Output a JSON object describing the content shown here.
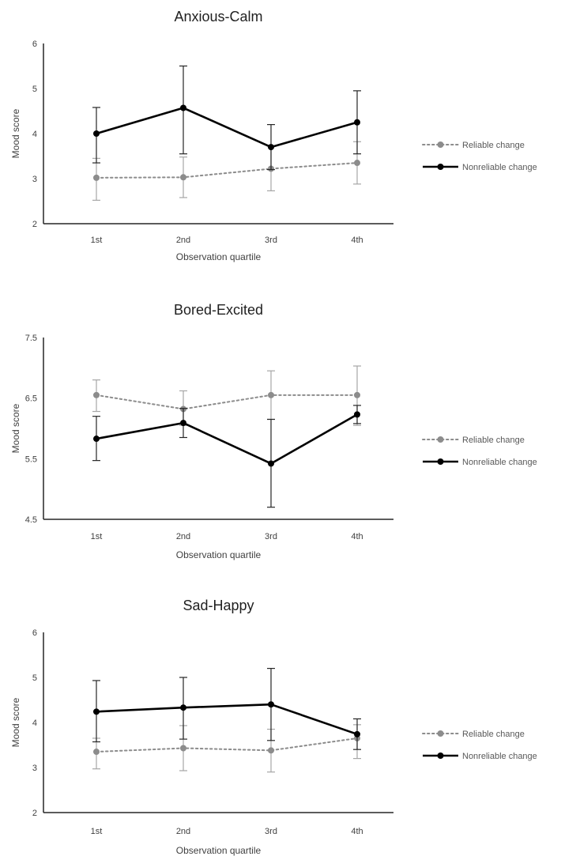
{
  "colors": {
    "reliable": "#8c8c8c",
    "nonreliable": "#000000",
    "axis": "#262626"
  },
  "chart_data": [
    {
      "type": "line",
      "title": "Anxious-Calm",
      "xlabel": "Observation quartile",
      "ylabel": "Mood score",
      "categories": [
        "1st",
        "2nd",
        "3rd",
        "4th"
      ],
      "ylim": [
        2,
        6
      ],
      "yticks": [
        "2",
        "3",
        "4",
        "5",
        "6"
      ],
      "tick_values": [
        2,
        3,
        4,
        5,
        6
      ],
      "grid": false,
      "legend": "right",
      "series": [
        {
          "name": "Reliable change",
          "style": "dotted",
          "color": "#8c8c8c",
          "values": [
            3.02,
            3.03,
            3.22,
            3.35
          ],
          "err_low": [
            2.52,
            2.58,
            2.73,
            2.88
          ],
          "err_high": [
            3.45,
            3.48,
            3.72,
            3.82
          ]
        },
        {
          "name": "Nonreliable change",
          "style": "solid",
          "color": "#000000",
          "values": [
            4.0,
            4.57,
            3.7,
            4.25
          ],
          "err_low": [
            3.35,
            3.55,
            3.2,
            3.55
          ],
          "err_high": [
            4.58,
            5.5,
            4.2,
            4.95
          ]
        }
      ]
    },
    {
      "type": "line",
      "title": "Bored-Excited",
      "xlabel": "Observation quartile",
      "ylabel": "Mood score",
      "categories": [
        "1st",
        "2nd",
        "3rd",
        "4th"
      ],
      "ylim": [
        4.5,
        7.5
      ],
      "yticks": [
        "4.5",
        "5.5",
        "6.5",
        "7.5"
      ],
      "tick_values": [
        4.5,
        5.5,
        6.5,
        7.5
      ],
      "grid": false,
      "legend": "right",
      "series": [
        {
          "name": "Reliable change",
          "style": "dotted",
          "color": "#8c8c8c",
          "values": [
            6.55,
            6.32,
            6.55,
            6.55
          ],
          "err_low": [
            6.28,
            6.05,
            6.15,
            6.05
          ],
          "err_high": [
            6.8,
            6.62,
            6.95,
            7.03
          ]
        },
        {
          "name": "Nonreliable change",
          "style": "solid",
          "color": "#000000",
          "values": [
            5.83,
            6.09,
            5.42,
            6.23
          ],
          "err_low": [
            5.47,
            5.85,
            4.7,
            6.08
          ],
          "err_high": [
            6.2,
            6.33,
            6.15,
            6.38
          ]
        }
      ]
    },
    {
      "type": "line",
      "title": "Sad-Happy",
      "xlabel": "Observation quartile",
      "ylabel": "Mood score",
      "categories": [
        "1st",
        "2nd",
        "3rd",
        "4th"
      ],
      "ylim": [
        2,
        6
      ],
      "yticks": [
        "2",
        "3",
        "4",
        "5",
        "6"
      ],
      "tick_values": [
        2,
        3,
        4,
        5,
        6
      ],
      "grid": false,
      "legend": "right",
      "series": [
        {
          "name": "Reliable change",
          "style": "dotted",
          "color": "#8c8c8c",
          "values": [
            3.35,
            3.43,
            3.38,
            3.65
          ],
          "err_low": [
            2.97,
            2.93,
            2.9,
            3.2
          ],
          "err_high": [
            3.65,
            3.93,
            3.85,
            3.95
          ]
        },
        {
          "name": "Nonreliable change",
          "style": "solid",
          "color": "#000000",
          "values": [
            4.24,
            4.33,
            4.4,
            3.74
          ],
          "err_low": [
            3.57,
            3.63,
            3.6,
            3.4
          ],
          "err_high": [
            4.93,
            5.0,
            5.2,
            4.08
          ]
        }
      ]
    }
  ]
}
